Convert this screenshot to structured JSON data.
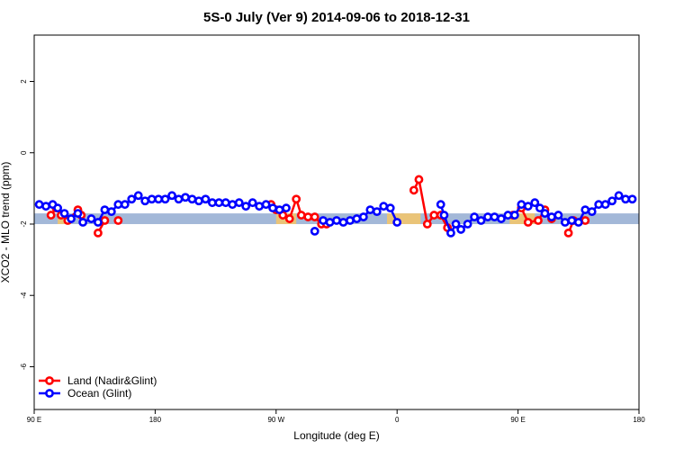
{
  "chart_data": {
    "type": "line",
    "title": "5S-0 July (Ver 9)   2014-09-06 to 2018-12-31",
    "xlabel": "Longitude (deg E)",
    "ylabel": "XCO2 - MLO trend (ppm)",
    "xlim": [
      90,
      450
    ],
    "ylim": [
      -7.2,
      3.3
    ],
    "x_ticks": [
      {
        "value": 90,
        "label": "90 E"
      },
      {
        "value": 162,
        "label": "180"
      },
      {
        "value": 234,
        "label": "90 W"
      },
      {
        "value": 306,
        "label": "0"
      },
      {
        "value": 378,
        "label": "90 E"
      },
      {
        "value": 450,
        "label": "180"
      }
    ],
    "y_ticks": [
      2,
      0,
      -2,
      -4,
      -6
    ],
    "reference_band": {
      "y_low": -2.0,
      "y_high": -1.7,
      "color": "#a3b8d8"
    },
    "highlight_band_color": "#f7c567",
    "highlight_ranges": [
      [
        104,
        109
      ],
      [
        234,
        246
      ],
      [
        300,
        320
      ],
      [
        373,
        388
      ]
    ],
    "legend": {
      "position": "bottom-left"
    },
    "series": [
      {
        "name": "Land (Nadir&Glint)",
        "color": "#ff0000",
        "segments": [
          [
            [
              100,
              -1.75
            ],
            [
              103,
              -1.55
            ],
            [
              106,
              -1.75
            ],
            [
              110,
              -1.9
            ],
            [
              116,
              -1.6
            ],
            [
              118,
              -1.75
            ]
          ],
          [
            [
              128,
              -2.25
            ],
            [
              132,
              -1.9
            ]
          ],
          [
            [
              140,
              -1.9
            ]
          ],
          [
            [
              231,
              -1.45
            ],
            [
              234,
              -1.6
            ],
            [
              238,
              -1.75
            ],
            [
              242,
              -1.85
            ],
            [
              246,
              -1.3
            ],
            [
              249,
              -1.75
            ],
            [
              253,
              -1.8
            ],
            [
              257,
              -1.8
            ],
            [
              261,
              -2.0
            ],
            [
              264,
              -2.0
            ]
          ],
          [
            [
              316,
              -1.05
            ],
            [
              319,
              -0.75
            ],
            [
              324,
              -2.0
            ],
            [
              328,
              -1.75
            ],
            [
              332,
              -1.75
            ],
            [
              336,
              -2.1
            ]
          ],
          [
            [
              375,
              -1.75
            ],
            [
              380,
              -1.55
            ],
            [
              384,
              -1.95
            ],
            [
              390,
              -1.9
            ],
            [
              394,
              -1.6
            ],
            [
              398,
              -1.85
            ]
          ],
          [
            [
              408,
              -2.25
            ],
            [
              411,
              -1.9
            ]
          ],
          [
            [
              418,
              -1.9
            ]
          ]
        ]
      },
      {
        "name": "Ocean (Glint)",
        "color": "#0000ff",
        "segments": [
          [
            [
              93,
              -1.45
            ],
            [
              97,
              -1.5
            ],
            [
              101,
              -1.45
            ],
            [
              104,
              -1.55
            ],
            [
              108,
              -1.7
            ],
            [
              112,
              -1.85
            ],
            [
              116,
              -1.7
            ],
            [
              119,
              -1.95
            ],
            [
              124,
              -1.85
            ],
            [
              128,
              -1.95
            ],
            [
              132,
              -1.6
            ],
            [
              136,
              -1.65
            ],
            [
              140,
              -1.45
            ],
            [
              144,
              -1.45
            ],
            [
              148,
              -1.3
            ],
            [
              152,
              -1.2
            ],
            [
              156,
              -1.35
            ],
            [
              160,
              -1.3
            ],
            [
              164,
              -1.3
            ],
            [
              168,
              -1.3
            ],
            [
              172,
              -1.2
            ],
            [
              176,
              -1.3
            ],
            [
              180,
              -1.25
            ],
            [
              184,
              -1.3
            ],
            [
              188,
              -1.35
            ],
            [
              192,
              -1.3
            ],
            [
              196,
              -1.4
            ],
            [
              200,
              -1.4
            ],
            [
              204,
              -1.4
            ],
            [
              208,
              -1.45
            ],
            [
              212,
              -1.4
            ],
            [
              216,
              -1.5
            ],
            [
              220,
              -1.4
            ],
            [
              224,
              -1.5
            ],
            [
              228,
              -1.45
            ],
            [
              232,
              -1.55
            ],
            [
              236,
              -1.6
            ],
            [
              240,
              -1.55
            ]
          ],
          [
            [
              257,
              -2.2
            ]
          ],
          [
            [
              262,
              -1.9
            ],
            [
              266,
              -1.95
            ],
            [
              270,
              -1.9
            ],
            [
              274,
              -1.95
            ],
            [
              278,
              -1.9
            ],
            [
              282,
              -1.85
            ],
            [
              286,
              -1.8
            ],
            [
              290,
              -1.6
            ],
            [
              294,
              -1.65
            ],
            [
              298,
              -1.5
            ],
            [
              302,
              -1.55
            ],
            [
              306,
              -1.95
            ]
          ],
          [
            [
              332,
              -1.45
            ],
            [
              334,
              -1.75
            ],
            [
              338,
              -2.25
            ],
            [
              341,
              -2.0
            ],
            [
              344,
              -2.15
            ],
            [
              348,
              -2.0
            ],
            [
              352,
              -1.8
            ],
            [
              356,
              -1.9
            ],
            [
              360,
              -1.8
            ],
            [
              364,
              -1.8
            ],
            [
              368,
              -1.85
            ],
            [
              372,
              -1.75
            ],
            [
              376,
              -1.75
            ],
            [
              380,
              -1.45
            ],
            [
              384,
              -1.5
            ],
            [
              388,
              -1.4
            ],
            [
              391,
              -1.55
            ],
            [
              394,
              -1.7
            ],
            [
              398,
              -1.8
            ],
            [
              402,
              -1.75
            ],
            [
              406,
              -1.95
            ],
            [
              410,
              -1.9
            ],
            [
              414,
              -1.95
            ],
            [
              418,
              -1.6
            ],
            [
              422,
              -1.65
            ],
            [
              426,
              -1.45
            ],
            [
              430,
              -1.45
            ],
            [
              434,
              -1.35
            ],
            [
              438,
              -1.2
            ],
            [
              442,
              -1.3
            ],
            [
              446,
              -1.3
            ]
          ]
        ]
      }
    ]
  }
}
